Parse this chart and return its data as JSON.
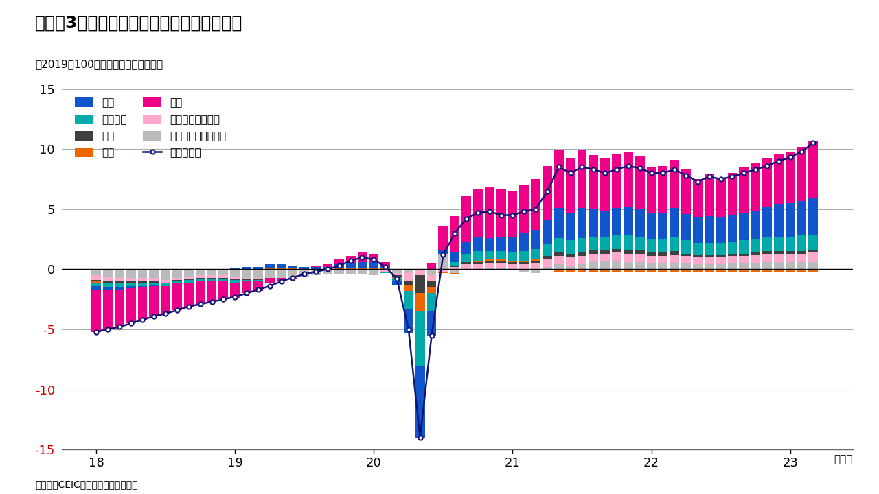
{
  "title": "（図表3）グローバルにみた小売売上の推移",
  "subtitle": "（2019＝100とし、そこからの変化）",
  "source": "（出所）CEICよりインベスコが作成",
  "xlabel_unit": "（年）",
  "ylim": [
    -15,
    15
  ],
  "yticks": [
    -15,
    -10,
    -5,
    0,
    5,
    10,
    15
  ],
  "xtick_labels": [
    "18",
    "19",
    "20",
    "21",
    "22",
    "23"
  ],
  "colors": {
    "米国": "#1155CC",
    "英国": "#404040",
    "中国": "#EE0088",
    "アジア以外の新興国": "#BBBBBB",
    "ユーロ圏": "#00AAAA",
    "日本": "#EE6600",
    "中国以外のアジア": "#FFAACC",
    "グローバル": "#111177"
  },
  "negative_ytick_color": "#CC0000",
  "background_color": "#FFFFFF",
  "grid_color": "#AAAAAA"
}
